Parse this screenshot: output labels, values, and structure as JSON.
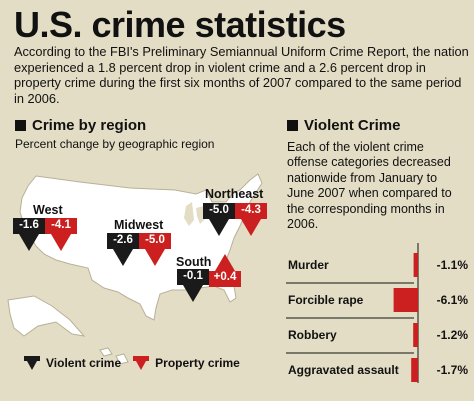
{
  "title": "U.S. crime statistics",
  "intro": "According to the FBI's Preliminary Semiannual Uniform Crime Report, the nation experienced a 1.8 percent drop in violent crime and a 2.6 percent drop in property crime during the first six months of 2007 compared to the same period in 2006.",
  "colors": {
    "background": "#e3ddc5",
    "map": "#ffffff",
    "violent": "#1a1a1a",
    "property": "#cc1f1f"
  },
  "chart_data": [
    {
      "type": "bar",
      "title": "Crime by region",
      "subtitle": "Percent change by geographic region",
      "categories": [
        "West",
        "Midwest",
        "Northeast",
        "South"
      ],
      "series": [
        {
          "name": "Violent crime",
          "values": [
            -1.6,
            -2.6,
            -5.0,
            -0.1
          ]
        },
        {
          "name": "Property crime",
          "values": [
            -4.1,
            -5.0,
            -4.3,
            0.4
          ]
        }
      ],
      "value_labels": {
        "violent": [
          "-1.6",
          "-2.6",
          "-5.0",
          "-0.1"
        ],
        "property": [
          "-4.1",
          "-5.0",
          "-4.3",
          "+0.4"
        ]
      },
      "legend": [
        "Violent crime",
        "Property crime"
      ],
      "legend_placement": "bottom"
    },
    {
      "type": "bar",
      "title": "Violent Crime",
      "description": "Each of the violent crime offense categories decreased nationwide from January to June 2007 when compared to the corresponding months in 2006.",
      "categories": [
        "Murder",
        "Forcible rape",
        "Robbery",
        "Aggravated assault"
      ],
      "values": [
        -1.1,
        -6.1,
        -1.2,
        -1.7
      ],
      "value_labels": [
        "-1.1%",
        "-6.1%",
        "-1.2%",
        "-1.7%"
      ],
      "orientation": "horizontal"
    }
  ]
}
